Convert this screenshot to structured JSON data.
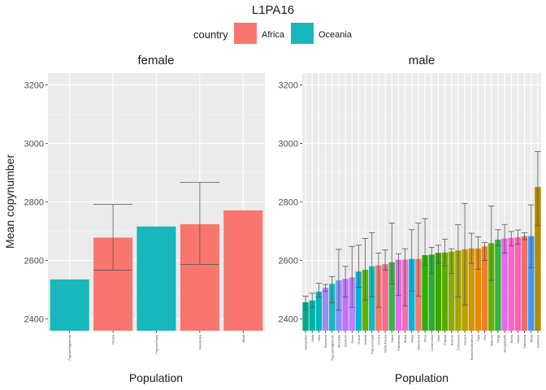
{
  "chart_data": {
    "type": "bar",
    "title": "L1PA16",
    "ylabel": "Mean copynumber",
    "xlabel": "Population",
    "ylim": [
      2360,
      3240
    ],
    "yticks": [
      2400,
      2600,
      2800,
      3000,
      3200
    ],
    "grid": true,
    "legend": {
      "title": "country",
      "position": "top",
      "entries": [
        {
          "name": "Africa",
          "color": "#F8766D"
        },
        {
          "name": "Oceania",
          "color": "#17B7BC"
        }
      ]
    },
    "panels": [
      {
        "name": "female",
        "categories": [
          "PapuanHighlands",
          "Yoruba",
          "PapuanSepik",
          "Mandenka",
          "Mbuti"
        ],
        "values": [
          2535,
          2678,
          2716,
          2724,
          2771
        ],
        "err_low": [
          null,
          2567,
          null,
          2586,
          null
        ],
        "err_high": [
          null,
          2792,
          null,
          2867,
          null
        ],
        "colors": [
          "#17B7BC",
          "#F8766D",
          "#17B7BC",
          "#F8766D",
          "#F8766D"
        ]
      },
      {
        "name": "male",
        "categories": [
          "Mongolian",
          "Mala",
          "Xibo",
          "Burmese",
          "PapuanHighlands",
          "Mozabite",
          "Bedouin",
          "Druze",
          "Dusun",
          "Kalash",
          "PapuanSepik",
          "Yoruba",
          "BantuKenya",
          "Yakut",
          "Palestinian",
          "Biaka",
          "Maya",
          "Mandenka",
          "Pima",
          "Cambodian",
          "Mixe",
          "Pathan",
          "Balochi",
          "Colombian",
          "Hazara",
          "BantuSouthAfrica",
          "Tujia",
          "San",
          "Makrani",
          "Tlingit",
          "Bougainville",
          "Bantu",
          "Masai",
          "Saharawi",
          "Mbuti",
          "Karitiana"
        ],
        "values": [
          2457,
          2463,
          2493,
          2507,
          2520,
          2532,
          2537,
          2542,
          2562,
          2568,
          2580,
          2583,
          2587,
          2594,
          2602,
          2603,
          2605,
          2605,
          2618,
          2620,
          2626,
          2627,
          2630,
          2634,
          2638,
          2641,
          2641,
          2648,
          2659,
          2671,
          2675,
          2677,
          2679,
          2683,
          2683,
          2851
        ],
        "err_low": [
          2432,
          2440,
          2475,
          2495,
          2455,
          2430,
          2475,
          2440,
          2508,
          2465,
          2475,
          2440,
          2567,
          2520,
          2480,
          2445,
          2495,
          2478,
          2583,
          2555,
          2591,
          2581,
          2555,
          2475,
          2448,
          2590,
          2570,
          2600,
          2532,
          2650,
          2625,
          2650,
          2655,
          2671,
          2575,
          2720
        ],
        "err_high": [
          2478,
          2488,
          2522,
          2518,
          2545,
          2638,
          2580,
          2648,
          2652,
          2675,
          2695,
          2625,
          2636,
          2728,
          2623,
          2640,
          2705,
          2728,
          2743,
          2645,
          2652,
          2673,
          2640,
          2722,
          2795,
          2693,
          2681,
          2661,
          2786,
          2705,
          2723,
          2699,
          2704,
          2695,
          2790,
          2972
        ],
        "colors": [
          "#00A98E",
          "#00B1A5",
          "#00B6BA",
          "#9B8DF8",
          "#17B7BC",
          "#7C96FF",
          "#C173FB",
          "#BE7EFF",
          "#00B5D4",
          "#5BB300",
          "#17B7BC",
          "#F8766D",
          "#F7698B",
          "#38B44A",
          "#E46BF2",
          "#F66BB5",
          "#00B5DD",
          "#F8766D",
          "#2CB000",
          "#29AE2F",
          "#41A300",
          "#5CAD00",
          "#8CAB00",
          "#A3A500",
          "#B9A000",
          "#CF9700",
          "#E88B00",
          "#F47D2C",
          "#64B200",
          "#33B544",
          "#E36AEF",
          "#F565CD",
          "#FE61B1",
          "#F1705E",
          "#3E99F8",
          "#B38B00"
        ]
      }
    ]
  }
}
